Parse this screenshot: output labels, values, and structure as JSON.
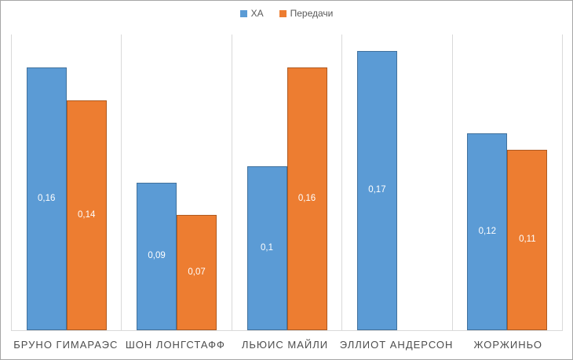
{
  "chart_data": {
    "type": "bar",
    "title": "",
    "xlabel": "",
    "ylabel": "",
    "ylim": [
      0,
      0.18
    ],
    "grid": "vertical-category-separators",
    "legend_position": "top-center",
    "categories": [
      "БРУНО ГИМАРАЭС",
      "ШОН ЛОНГСТАФФ",
      "ЛЬЮИС МАЙЛИ",
      "ЭЛЛИОТ АНДЕРСОН",
      "ЖОРЖИНЬО"
    ],
    "series": [
      {
        "name": "ХА",
        "color": "#5B9BD5",
        "border_color": "#41719C",
        "values": [
          0.16,
          0.09,
          0.1,
          0.17,
          0.12
        ],
        "labels": [
          "0,16",
          "0,09",
          "0,1",
          "0,17",
          "0,12"
        ]
      },
      {
        "name": "Передачи",
        "color": "#ED7D31",
        "border_color": "#AE5A21",
        "values": [
          0.14,
          0.07,
          0.16,
          null,
          0.11
        ],
        "labels": [
          "0,14",
          "0,07",
          "0,16",
          "",
          "0,11"
        ]
      }
    ],
    "data_label_color": "#FFFFFF",
    "axis_text_color": "#595959",
    "gridline_color": "#D9D9D9"
  }
}
